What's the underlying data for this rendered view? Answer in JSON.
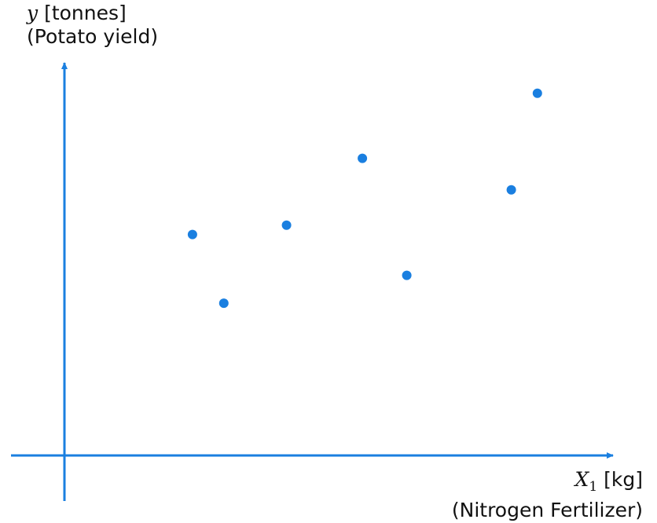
{
  "chart_data": {
    "type": "scatter",
    "y_axis": {
      "symbol": "y",
      "unit": "[tonnes]",
      "name": "(Potato yield)"
    },
    "x_axis": {
      "symbol": "X",
      "subscript": "1",
      "unit": "[kg]",
      "name": "(Nitrogen Fertilizer)"
    },
    "xlim": [
      0,
      10
    ],
    "ylim": [
      0,
      10
    ],
    "ticks": false,
    "grid": false,
    "color": "#1a7fe0",
    "points": [
      {
        "x": 2.45,
        "y": 5.95
      },
      {
        "x": 3.05,
        "y": 4.1
      },
      {
        "x": 4.25,
        "y": 6.2
      },
      {
        "x": 5.7,
        "y": 8.0
      },
      {
        "x": 6.55,
        "y": 4.85
      },
      {
        "x": 8.55,
        "y": 7.15
      },
      {
        "x": 9.05,
        "y": 9.75
      }
    ]
  }
}
